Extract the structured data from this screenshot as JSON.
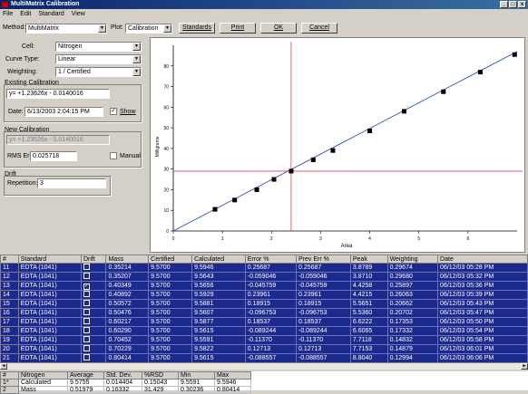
{
  "window": {
    "title": "MultiMatrix Calibration",
    "controls": [
      "_",
      "□",
      "x"
    ]
  },
  "menu": [
    "File",
    "Edit",
    "Standard",
    "View"
  ],
  "toolbar": {
    "method_label": "Method:",
    "method_value": "MultiMatrix",
    "plot_label": "Plot:",
    "plot_value": "Calibration",
    "buttons": [
      "Standards",
      "Print",
      "OK",
      "Cancel"
    ]
  },
  "panel": {
    "cell_label": "Cell:",
    "cell_value": "Nitrogen",
    "curve_label": "Curve Type:",
    "curve_value": "Linear",
    "weighting_label": "Weighting:",
    "weighting_value": "1 / Certified",
    "existing_label": "Existing Calibration",
    "existing_value": "y= +1.23626x - 0.0140016",
    "date_label": "Date:",
    "date_value": "6/13/2003 2:04:15 PM",
    "show_label": "Show",
    "new_label": "New Calibration",
    "new_value": "y= +1.23626x - 0.0140016",
    "rms_label": "RMS Error:",
    "rms_value": "0.025718",
    "manual_label": "Manual",
    "drift_label": "Drift",
    "repetition_label": "Repetition:",
    "repetition_value": "3"
  },
  "chart_data": {
    "type": "scatter",
    "title": "",
    "xlabel": "Area",
    "ylabel": "Milligrams",
    "xlim": [
      0,
      7
    ],
    "ylim": [
      0,
      90
    ],
    "xticks": [
      0,
      1,
      2,
      3,
      4,
      5,
      6
    ],
    "yticks": [
      0,
      10,
      20,
      30,
      40,
      50,
      60,
      70,
      80
    ],
    "points": [
      {
        "x": 0.85,
        "y": 10.5
      },
      {
        "x": 1.25,
        "y": 15
      },
      {
        "x": 1.7,
        "y": 20
      },
      {
        "x": 2.05,
        "y": 25
      },
      {
        "x": 2.4,
        "y": 29
      },
      {
        "x": 2.85,
        "y": 34.5
      },
      {
        "x": 3.25,
        "y": 39
      },
      {
        "x": 4.0,
        "y": 48.5
      },
      {
        "x": 4.7,
        "y": 58
      },
      {
        "x": 5.5,
        "y": 67.5
      },
      {
        "x": 6.25,
        "y": 77
      },
      {
        "x": 6.95,
        "y": 85.5
      }
    ],
    "fit_line": [
      {
        "x": 0,
        "y": 0
      },
      {
        "x": 7,
        "y": 87
      }
    ],
    "crosshair": {
      "x": 2.4,
      "y": 29
    },
    "grid": false
  },
  "grid": {
    "headers": [
      "#",
      "Standard",
      "Drift",
      "Mass",
      "Certified",
      "Calculated",
      "Error %",
      "Prev Err %",
      "Peak",
      "Weighting",
      "Date"
    ],
    "rows": [
      [
        "11",
        "EDTA (1041)",
        "",
        "0.35214",
        "9.5700",
        "9.5946",
        "0.25687",
        "0.25687",
        "3.8789",
        "0.29674",
        "06/12/03 05:28 PM"
      ],
      [
        "12",
        "EDTA (1041)",
        "",
        "0.35207",
        "9.5700",
        "9.5643",
        "-0.059046",
        "-0.059046",
        "3.8710",
        "0.29680",
        "06/12/03 05:32 PM"
      ],
      [
        "13",
        "EDTA (1041)",
        "x",
        "0.40349",
        "9.5700",
        "9.5656",
        "-0.045759",
        "-0.045759",
        "4.4258",
        "0.25897",
        "06/12/03 05:36 PM"
      ],
      [
        "14",
        "EDTA (1041)",
        "",
        "0.40892",
        "9.5700",
        "9.5929",
        "0.23961",
        "0.23961",
        "4.4215",
        "0.26063",
        "06/12/03 05:39 PM"
      ],
      [
        "15",
        "EDTA (1041)",
        "",
        "0.50572",
        "9.5700",
        "9.5881",
        "0.18915",
        "0.18915",
        "5.5651",
        "0.20662",
        "06/12/03 05:43 PM"
      ],
      [
        "16",
        "EDTA (1041)",
        "",
        "0.50476",
        "9.5700",
        "9.5607",
        "-0.096753",
        "-0.096753",
        "5.5360",
        "0.20702",
        "06/12/03 05:47 PM"
      ],
      [
        "17",
        "EDTA (1041)",
        "",
        "0.60217",
        "9.5700",
        "9.5877",
        "0.18537",
        "0.18537",
        "6.6222",
        "0.17353",
        "06/12/03 05:50 PM"
      ],
      [
        "18",
        "EDTA (1041)",
        "",
        "0.60290",
        "9.5700",
        "9.5615",
        "-0.089244",
        "-0.089244",
        "6.6065",
        "0.17332",
        "06/12/03 05:54 PM"
      ],
      [
        "19",
        "EDTA (1041)",
        "",
        "0.70452",
        "9.5700",
        "9.5591",
        "-0.11370",
        "-0.11370",
        "7.7118",
        "0.14832",
        "06/12/03 05:58 PM"
      ],
      [
        "20",
        "EDTA (1041)",
        "",
        "0.70229",
        "9.5700",
        "9.5822",
        "0.12713",
        "0.12713",
        "7.7153",
        "0.14879",
        "06/12/03 06:01 PM"
      ],
      [
        "21",
        "EDTA (1041)",
        "",
        "0.80414",
        "9.5700",
        "9.5615",
        "-0.088557",
        "-0.088557",
        "8.8040",
        "0.12994",
        "06/12/03 06:06 PM"
      ]
    ]
  },
  "stats": {
    "headers": [
      "#",
      "Nitrogen",
      "Average",
      "Std. Dev.",
      "%RSD",
      "Min",
      "Max"
    ],
    "rows": [
      [
        "1*",
        "Calculated",
        "9.5755",
        "0.014404",
        "0.15043",
        "9.5591",
        "9.5946"
      ],
      [
        "2",
        "Mass",
        "0.51979",
        "0.16332",
        "31.429",
        "0.30236",
        "0.80414"
      ]
    ]
  }
}
